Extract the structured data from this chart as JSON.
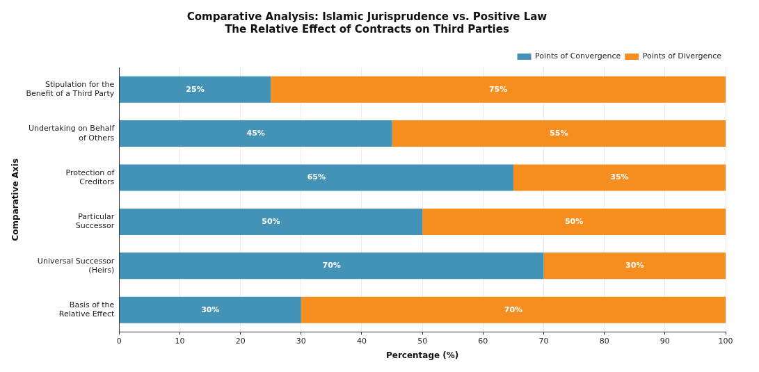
{
  "chart_data": {
    "type": "bar",
    "orientation": "horizontal",
    "stacked": true,
    "title": "Comparative Analysis: Islamic Jurisprudence vs. Positive Law\nThe Relative Effect of Contracts on Third Parties",
    "xlabel": "Percentage (%)",
    "ylabel": "Comparative Axis",
    "categories": [
      "Stipulation for the\nBenefit of a Third Party",
      "Undertaking on Behalf\nof Others",
      "Protection of\nCreditors",
      "Particular\nSuccessor",
      "Universal Successor\n(Heirs)",
      "Basis of the\nRelative Effect"
    ],
    "series": [
      {
        "name": "Points of Convergence",
        "color": "#4492b5",
        "values": [
          25,
          45,
          65,
          50,
          70,
          30
        ],
        "value_labels": [
          "25%",
          "45%",
          "65%",
          "50%",
          "70%",
          "30%"
        ]
      },
      {
        "name": "Points of Divergence",
        "color": "#f68d1f",
        "values": [
          75,
          55,
          35,
          50,
          30,
          70
        ],
        "value_labels": [
          "75%",
          "55%",
          "35%",
          "50%",
          "30%",
          "70%"
        ]
      }
    ],
    "xlim": [
      0,
      100
    ],
    "xticks": [
      0,
      10,
      20,
      30,
      40,
      50,
      60,
      70,
      80,
      90,
      100
    ],
    "grid": "x",
    "legend": "top right"
  }
}
